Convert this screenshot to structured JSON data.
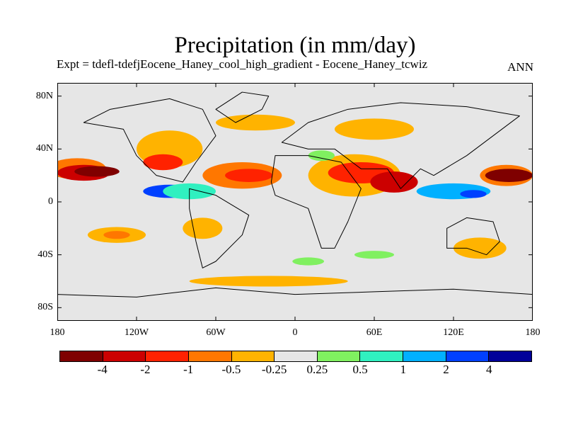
{
  "title": "Precipitation (in mm/day)",
  "subtitle": "Expt = tdefl-tdefjEocene_Haney_cool_high_gradient - Eocene_Haney_tcwiz",
  "season": "ANN",
  "map": {
    "projection": "cylindrical equidistant",
    "background_color": "#e6e6e6",
    "lat_ticks": [
      {
        "value": 80,
        "label": "80N"
      },
      {
        "value": 40,
        "label": "40N"
      },
      {
        "value": 0,
        "label": "0"
      },
      {
        "value": -40,
        "label": "40S"
      },
      {
        "value": -80,
        "label": "80S"
      }
    ],
    "lon_ticks": [
      {
        "value": -180,
        "label": "180"
      },
      {
        "value": -120,
        "label": "120W"
      },
      {
        "value": -60,
        "label": "60W"
      },
      {
        "value": 0,
        "label": "0"
      },
      {
        "value": 60,
        "label": "60E"
      },
      {
        "value": 120,
        "label": "120E"
      },
      {
        "value": 180,
        "label": "180"
      }
    ]
  },
  "colorbar": {
    "colors": [
      "#7f0000",
      "#cc0000",
      "#ff2200",
      "#ff7700",
      "#ffb300",
      "#e6e6e6",
      "#80f060",
      "#30f0c0",
      "#00b0ff",
      "#0040ff",
      "#000099"
    ],
    "labels": [
      "-4",
      "-2",
      "-1",
      "-0.5",
      "-0.25",
      "0.25",
      "0.5",
      "1",
      "2",
      "4"
    ]
  },
  "regions": [
    {
      "name": "central-pacific-strong-drying",
      "lon": -165,
      "lat": 25,
      "rx": 22,
      "ry": 8,
      "color": "#ff7700"
    },
    {
      "name": "central-pacific-core",
      "lon": -160,
      "lat": 22,
      "rx": 20,
      "ry": 6,
      "color": "#cc0000"
    },
    {
      "name": "central-pacific-max",
      "lon": -150,
      "lat": 23,
      "rx": 17,
      "ry": 4,
      "color": "#7f0000"
    },
    {
      "name": "west-pacific-drying",
      "lon": 160,
      "lat": 20,
      "rx": 20,
      "ry": 8,
      "color": "#ff7700"
    },
    {
      "name": "west-pacific-core",
      "lon": 162,
      "lat": 20,
      "rx": 18,
      "ry": 5,
      "color": "#7f0000"
    },
    {
      "name": "africa-arabia-drying",
      "lon": 45,
      "lat": 20,
      "rx": 35,
      "ry": 16,
      "color": "#ffb300"
    },
    {
      "name": "africa-arabia-core",
      "lon": 50,
      "lat": 22,
      "rx": 25,
      "ry": 8,
      "color": "#ff2200"
    },
    {
      "name": "india-drying",
      "lon": 75,
      "lat": 15,
      "rx": 18,
      "ry": 8,
      "color": "#cc0000"
    },
    {
      "name": "atlantic-drying",
      "lon": -40,
      "lat": 20,
      "rx": 30,
      "ry": 10,
      "color": "#ff7700"
    },
    {
      "name": "atlantic-core",
      "lon": -35,
      "lat": 20,
      "rx": 18,
      "ry": 5,
      "color": "#ff2200"
    },
    {
      "name": "north-america-drying",
      "lon": -95,
      "lat": 40,
      "rx": 25,
      "ry": 14,
      "color": "#ffb300"
    },
    {
      "name": "north-america-core",
      "lon": -100,
      "lat": 30,
      "rx": 15,
      "ry": 6,
      "color": "#ff2200"
    },
    {
      "name": "eastern-pacific-wet",
      "lon": -95,
      "lat": 8,
      "rx": 20,
      "ry": 5,
      "color": "#0040ff"
    },
    {
      "name": "eastern-pacific-wet-edge",
      "lon": -80,
      "lat": 8,
      "rx": 20,
      "ry": 6,
      "color": "#30f0c0"
    },
    {
      "name": "indian-ocean-wet",
      "lon": 120,
      "lat": 8,
      "rx": 28,
      "ry": 6,
      "color": "#00b0ff"
    },
    {
      "name": "indian-ocean-wet-core",
      "lon": 135,
      "lat": 6,
      "rx": 10,
      "ry": 3,
      "color": "#0040ff"
    },
    {
      "name": "south-pacific-drying",
      "lon": -135,
      "lat": -25,
      "rx": 22,
      "ry": 6,
      "color": "#ffb300"
    },
    {
      "name": "south-pacific-core",
      "lon": -135,
      "lat": -25,
      "rx": 10,
      "ry": 3,
      "color": "#ff7700"
    },
    {
      "name": "south-america-drying",
      "lon": -70,
      "lat": -20,
      "rx": 15,
      "ry": 8,
      "color": "#ffb300"
    },
    {
      "name": "australia-drying",
      "lon": 140,
      "lat": -35,
      "rx": 20,
      "ry": 8,
      "color": "#ffb300"
    },
    {
      "name": "mediterranean-wet",
      "lon": 20,
      "lat": 35,
      "rx": 10,
      "ry": 4,
      "color": "#80f060"
    },
    {
      "name": "south-atlantic-wet",
      "lon": 10,
      "lat": -45,
      "rx": 12,
      "ry": 3,
      "color": "#80f060"
    },
    {
      "name": "south-indian-wet",
      "lon": 60,
      "lat": -40,
      "rx": 15,
      "ry": 3,
      "color": "#80f060"
    },
    {
      "name": "northern-drying",
      "lon": -30,
      "lat": 60,
      "rx": 30,
      "ry": 6,
      "color": "#ffb300"
    },
    {
      "name": "eurasia-drying",
      "lon": 60,
      "lat": 55,
      "rx": 30,
      "ry": 8,
      "color": "#ffb300"
    },
    {
      "name": "southern-ocean-drying",
      "lon": -20,
      "lat": -60,
      "rx": 60,
      "ry": 4,
      "color": "#ffb300"
    }
  ],
  "continents": [
    {
      "name": "north-america",
      "points": [
        [
          -160,
          60
        ],
        [
          -140,
          70
        ],
        [
          -95,
          78
        ],
        [
          -70,
          70
        ],
        [
          -60,
          50
        ],
        [
          -75,
          30
        ],
        [
          -85,
          15
        ],
        [
          -105,
          20
        ],
        [
          -120,
          35
        ],
        [
          -130,
          55
        ]
      ]
    },
    {
      "name": "south-america",
      "points": [
        [
          -80,
          10
        ],
        [
          -60,
          5
        ],
        [
          -35,
          -10
        ],
        [
          -40,
          -25
        ],
        [
          -60,
          -45
        ],
        [
          -70,
          -50
        ],
        [
          -75,
          -30
        ],
        [
          -80,
          -5
        ]
      ]
    },
    {
      "name": "africa",
      "points": [
        [
          -15,
          35
        ],
        [
          10,
          35
        ],
        [
          35,
          30
        ],
        [
          50,
          10
        ],
        [
          40,
          -15
        ],
        [
          30,
          -35
        ],
        [
          20,
          -35
        ],
        [
          10,
          -5
        ],
        [
          -15,
          5
        ],
        [
          -18,
          15
        ]
      ]
    },
    {
      "name": "eurasia",
      "points": [
        [
          -10,
          45
        ],
        [
          10,
          60
        ],
        [
          40,
          70
        ],
        [
          80,
          75
        ],
        [
          130,
          72
        ],
        [
          170,
          65
        ],
        [
          150,
          50
        ],
        [
          130,
          35
        ],
        [
          105,
          20
        ],
        [
          95,
          25
        ],
        [
          80,
          10
        ],
        [
          70,
          25
        ],
        [
          50,
          25
        ],
        [
          30,
          40
        ],
        [
          10,
          40
        ]
      ]
    },
    {
      "name": "australia",
      "points": [
        [
          115,
          -20
        ],
        [
          130,
          -12
        ],
        [
          150,
          -15
        ],
        [
          155,
          -30
        ],
        [
          145,
          -40
        ],
        [
          130,
          -35
        ],
        [
          115,
          -35
        ]
      ]
    },
    {
      "name": "antarctica",
      "points": [
        [
          -180,
          -70
        ],
        [
          -120,
          -72
        ],
        [
          -60,
          -65
        ],
        [
          0,
          -70
        ],
        [
          60,
          -68
        ],
        [
          120,
          -66
        ],
        [
          180,
          -70
        ],
        [
          180,
          -90
        ],
        [
          -180,
          -90
        ]
      ]
    },
    {
      "name": "greenland",
      "points": [
        [
          -60,
          70
        ],
        [
          -40,
          83
        ],
        [
          -20,
          80
        ],
        [
          -25,
          70
        ],
        [
          -45,
          60
        ]
      ]
    }
  ]
}
